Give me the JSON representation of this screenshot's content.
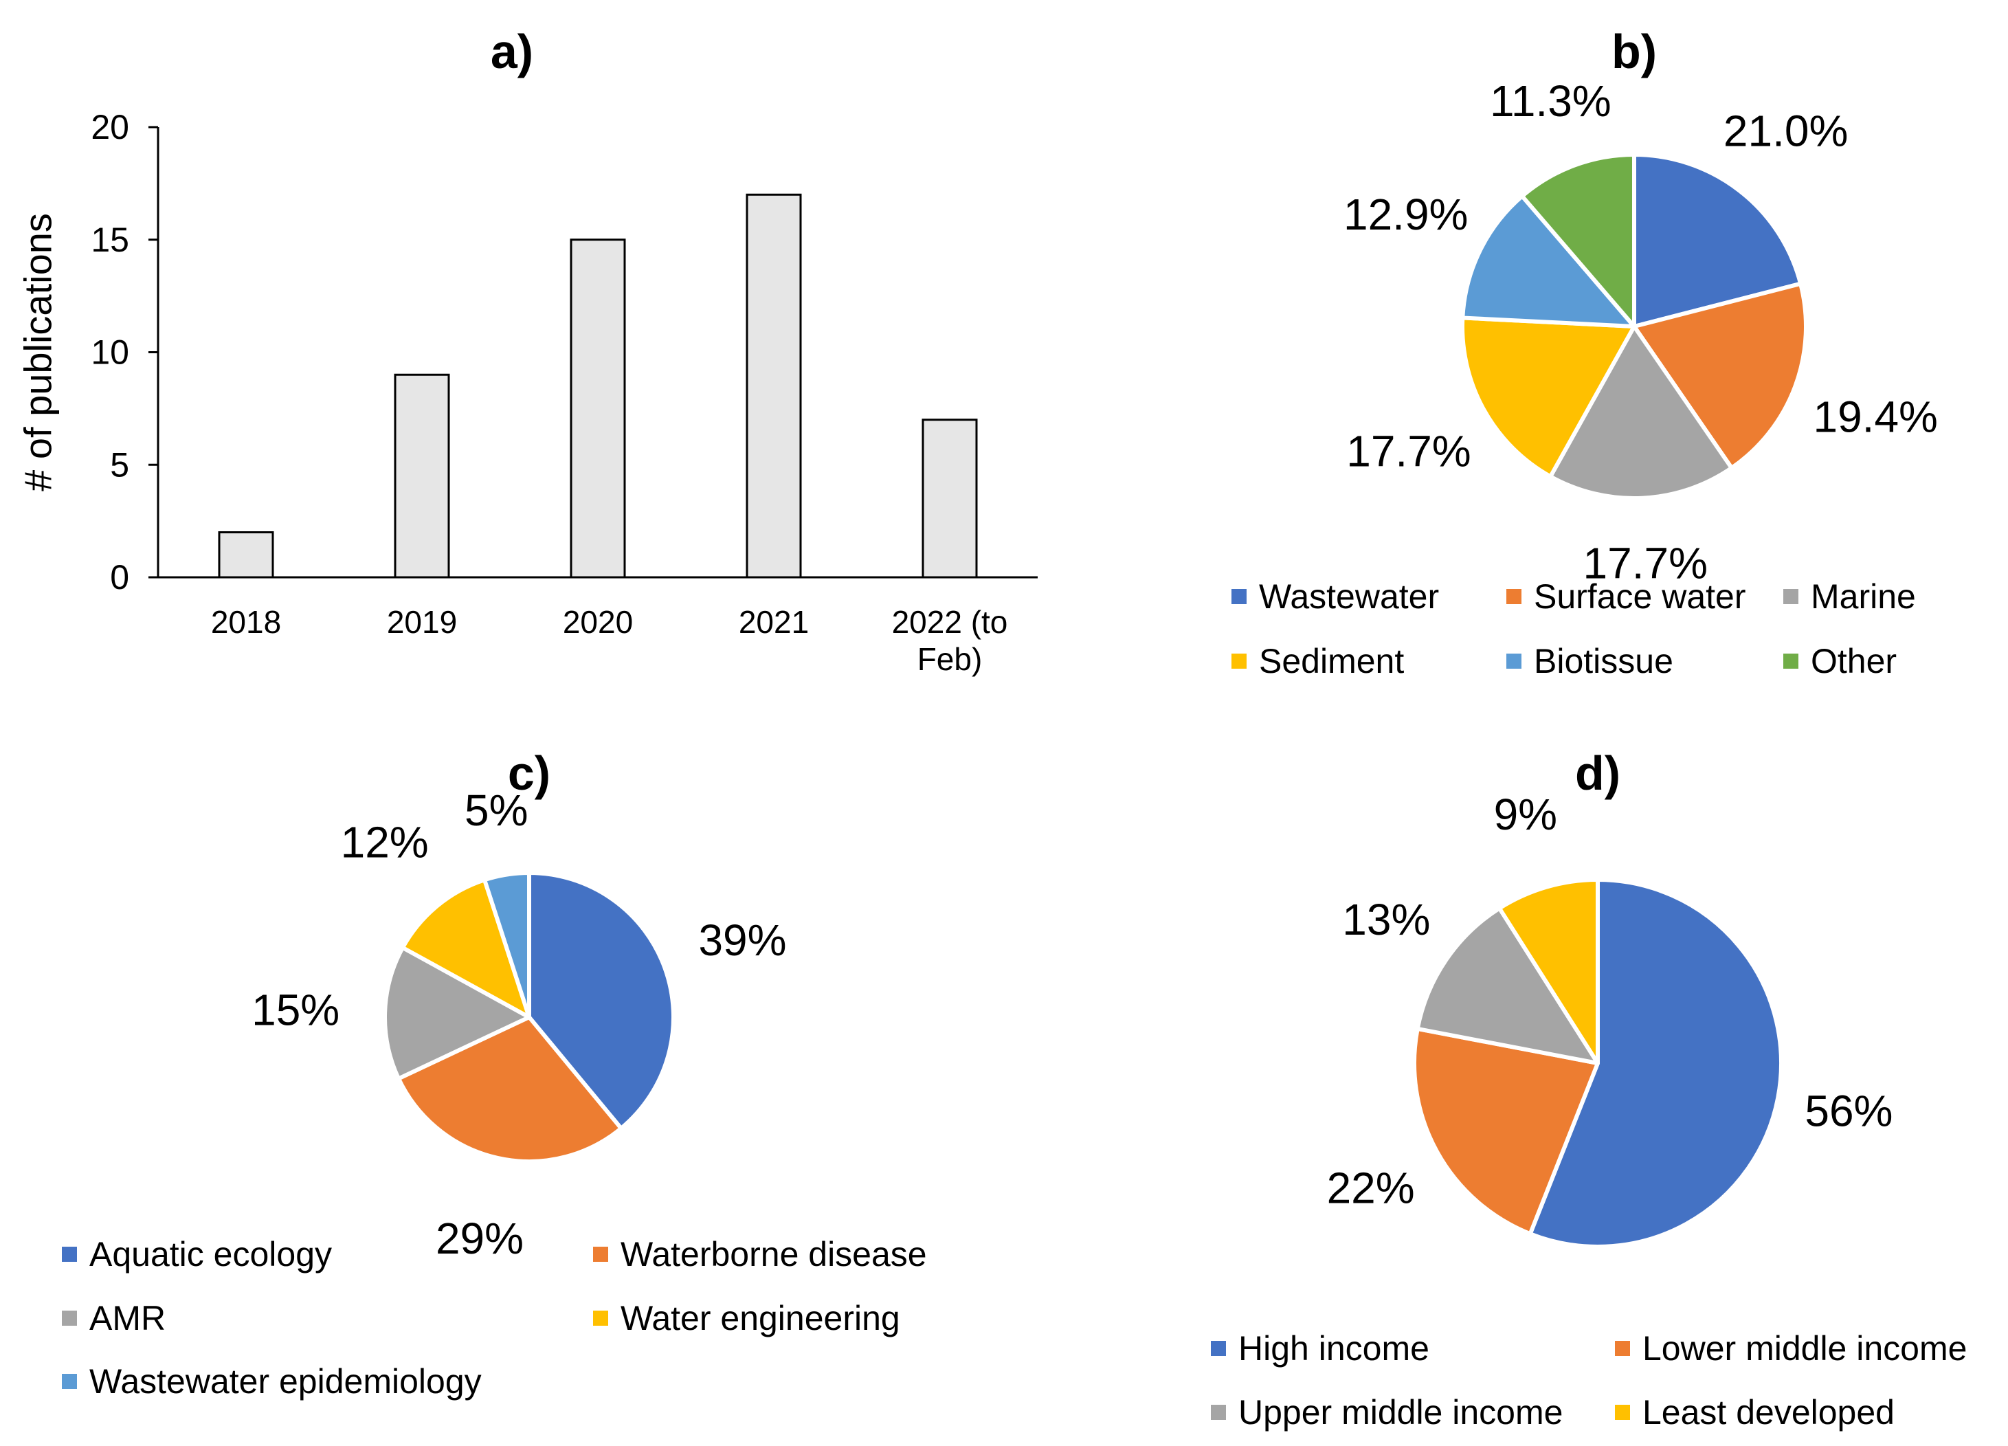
{
  "chart_data": [
    {
      "panel": "a)",
      "type": "bar",
      "categories": [
        [
          "2018"
        ],
        [
          "2019"
        ],
        [
          "2020"
        ],
        [
          "2021"
        ],
        [
          "2022 (to",
          "Feb)"
        ]
      ],
      "values": [
        2,
        9,
        15,
        17,
        7
      ],
      "ylabel": "# of publications",
      "ylim": [
        0,
        20
      ],
      "yticks": [
        0,
        5,
        10,
        15,
        20
      ],
      "grid": false,
      "bar_color": "#e6e6e6"
    },
    {
      "panel": "b)",
      "type": "pie",
      "slices": [
        {
          "label": "Wastewater",
          "value": 21.0,
          "text": "21.0%",
          "color": "#4472c4"
        },
        {
          "label": "Surface water",
          "value": 19.4,
          "text": "19.4%",
          "color": "#ed7d31"
        },
        {
          "label": "Marine",
          "value": 17.7,
          "text": "17.7%",
          "color": "#a5a5a5"
        },
        {
          "label": "Sediment",
          "value": 17.7,
          "text": "17.7%",
          "color": "#ffc000"
        },
        {
          "label": "Biotissue",
          "value": 12.9,
          "text": "12.9%",
          "color": "#5b9bd5"
        },
        {
          "label": "Other",
          "value": 11.3,
          "text": "11.3%",
          "color": "#70ad47"
        }
      ],
      "legend_placement": "bottom"
    },
    {
      "panel": "c)",
      "type": "pie",
      "slices": [
        {
          "label": "Aquatic ecology",
          "value": 39,
          "text": "39%",
          "color": "#4472c4"
        },
        {
          "label": "Waterborne disease",
          "value": 29,
          "text": "29%",
          "color": "#ed7d31"
        },
        {
          "label": "AMR",
          "value": 15,
          "text": "15%",
          "color": "#a5a5a5"
        },
        {
          "label": "Water engineering",
          "value": 12,
          "text": "12%",
          "color": "#ffc000"
        },
        {
          "label": "Wastewater epidemiology",
          "value": 5,
          "text": "5%",
          "color": "#5b9bd5"
        }
      ],
      "legend_placement": "bottom"
    },
    {
      "panel": "d)",
      "type": "pie",
      "slices": [
        {
          "label": "High income",
          "value": 56,
          "text": "56%",
          "color": "#4472c4"
        },
        {
          "label": "Lower middle income",
          "value": 22,
          "text": "22%",
          "color": "#ed7d31"
        },
        {
          "label": "Upper middle income",
          "value": 13,
          "text": "13%",
          "color": "#a5a5a5"
        },
        {
          "label": "Least developed",
          "value": 9,
          "text": "9%",
          "color": "#ffc000"
        }
      ],
      "legend_placement": "bottom"
    }
  ]
}
